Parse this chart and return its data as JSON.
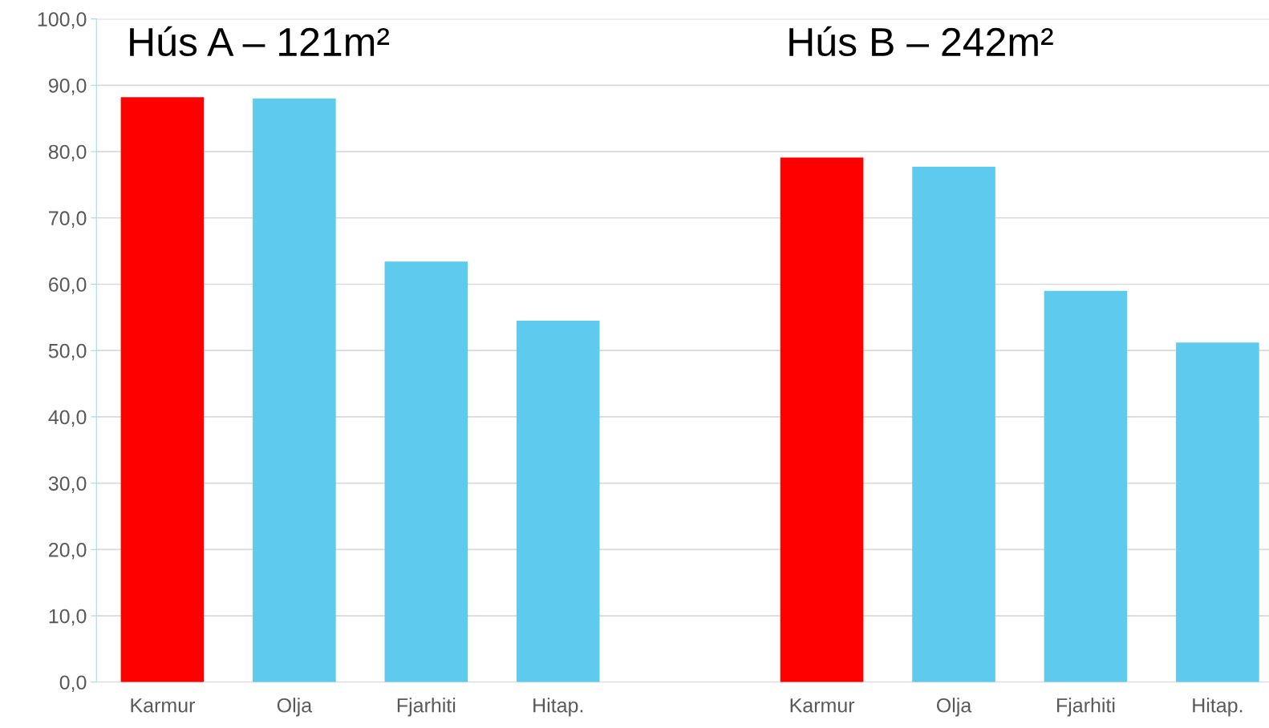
{
  "chart_data": {
    "type": "bar",
    "categories": [
      "Karmur",
      "Olja",
      "Fjarhiti",
      "Hitap.",
      null,
      "Karmur",
      "Olja",
      "Fjarhiti",
      "Hitap."
    ],
    "values": [
      88.2,
      88.0,
      63.4,
      54.5,
      null,
      79.1,
      77.7,
      59.0,
      51.2
    ],
    "colors": [
      "#ff0000",
      "#5ecbee",
      "#5ecbee",
      "#5ecbee",
      "#5ecbee",
      "#ff0000",
      "#5ecbee",
      "#5ecbee",
      "#5ecbee"
    ],
    "annotations": [
      "Hús A – 121m²",
      "Hús B – 242m²"
    ],
    "ylim": [
      0,
      100
    ],
    "yticks": [
      {
        "value": 0,
        "label": "0,0"
      },
      {
        "value": 10,
        "label": "10,0"
      },
      {
        "value": 20,
        "label": "20,0"
      },
      {
        "value": 30,
        "label": "30,0"
      },
      {
        "value": 40,
        "label": "40,0"
      },
      {
        "value": 50,
        "label": "50,0"
      },
      {
        "value": 60,
        "label": "60,0"
      },
      {
        "value": 70,
        "label": "70,0"
      },
      {
        "value": 80,
        "label": "80,0"
      },
      {
        "value": 90,
        "label": "90,0"
      },
      {
        "value": 100,
        "label": "100,0"
      }
    ],
    "grid": "y"
  }
}
